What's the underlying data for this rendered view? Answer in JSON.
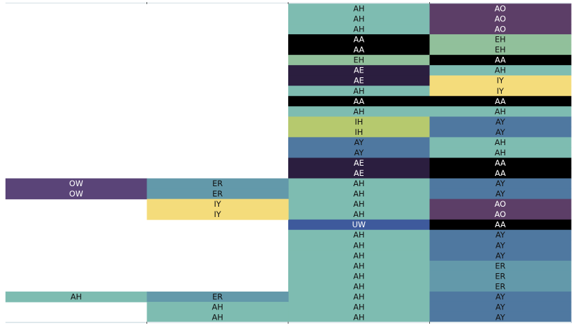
{
  "chart_data": {
    "type": "heatmap",
    "title": "",
    "xlabel": "",
    "ylabel": "",
    "grid": false,
    "legend": "none",
    "columns": 4,
    "rows": 31,
    "colors": {
      "AA": "#000000",
      "AE": "#2b1e3f",
      "AH": "#7ebcb1",
      "AO": "#5c3e67",
      "AY": "#4f78a0",
      "EH": "#91c09b",
      "ER": "#6399aa",
      "IH": "#b6c96e",
      "IY": "#f4dc7b",
      "OW": "#5a4478",
      "UW": "#3e5a9c"
    },
    "text_colors": {
      "AA": "#ffffff",
      "AE": "#ffffff",
      "AO": "#ffffff",
      "OW": "#ffffff",
      "UW": "#ffffff",
      "AH": "#111111",
      "AY": "#111111",
      "EH": "#111111",
      "ER": "#111111",
      "IH": "#111111",
      "IY": "#111111"
    },
    "cells": [
      {
        "col": 2,
        "row": 0,
        "label": "AH"
      },
      {
        "col": 2,
        "row": 1,
        "label": "AH"
      },
      {
        "col": 2,
        "row": 2,
        "label": "AH"
      },
      {
        "col": 2,
        "row": 3,
        "label": "AA"
      },
      {
        "col": 2,
        "row": 4,
        "label": "AA"
      },
      {
        "col": 2,
        "row": 5,
        "label": "EH"
      },
      {
        "col": 2,
        "row": 6,
        "label": "AE"
      },
      {
        "col": 2,
        "row": 7,
        "label": "AE"
      },
      {
        "col": 2,
        "row": 8,
        "label": "AH"
      },
      {
        "col": 2,
        "row": 9,
        "label": "AA"
      },
      {
        "col": 2,
        "row": 10,
        "label": "AH"
      },
      {
        "col": 2,
        "row": 11,
        "label": "IH"
      },
      {
        "col": 2,
        "row": 12,
        "label": "IH"
      },
      {
        "col": 2,
        "row": 13,
        "label": "AY"
      },
      {
        "col": 2,
        "row": 14,
        "label": "AY"
      },
      {
        "col": 2,
        "row": 15,
        "label": "AE"
      },
      {
        "col": 2,
        "row": 16,
        "label": "AE"
      },
      {
        "col": 2,
        "row": 17,
        "label": "AH"
      },
      {
        "col": 2,
        "row": 18,
        "label": "AH"
      },
      {
        "col": 2,
        "row": 19,
        "label": "AH"
      },
      {
        "col": 2,
        "row": 20,
        "label": "AH"
      },
      {
        "col": 2,
        "row": 21,
        "label": "UW"
      },
      {
        "col": 2,
        "row": 22,
        "label": "AH"
      },
      {
        "col": 2,
        "row": 23,
        "label": "AH"
      },
      {
        "col": 2,
        "row": 24,
        "label": "AH"
      },
      {
        "col": 2,
        "row": 25,
        "label": "AH"
      },
      {
        "col": 2,
        "row": 26,
        "label": "AH"
      },
      {
        "col": 2,
        "row": 27,
        "label": "AH"
      },
      {
        "col": 2,
        "row": 28,
        "label": "AH"
      },
      {
        "col": 2,
        "row": 29,
        "label": "AH"
      },
      {
        "col": 2,
        "row": 30,
        "label": "AH"
      },
      {
        "col": 3,
        "row": 0,
        "label": "AO"
      },
      {
        "col": 3,
        "row": 1,
        "label": "AO"
      },
      {
        "col": 3,
        "row": 2,
        "label": "AO"
      },
      {
        "col": 3,
        "row": 3,
        "label": "EH"
      },
      {
        "col": 3,
        "row": 4,
        "label": "EH"
      },
      {
        "col": 3,
        "row": 5,
        "label": "AA"
      },
      {
        "col": 3,
        "row": 6,
        "label": "AH"
      },
      {
        "col": 3,
        "row": 7,
        "label": "IY"
      },
      {
        "col": 3,
        "row": 8,
        "label": "IY"
      },
      {
        "col": 3,
        "row": 9,
        "label": "AA"
      },
      {
        "col": 3,
        "row": 10,
        "label": "AH"
      },
      {
        "col": 3,
        "row": 11,
        "label": "AY"
      },
      {
        "col": 3,
        "row": 12,
        "label": "AY"
      },
      {
        "col": 3,
        "row": 13,
        "label": "AH"
      },
      {
        "col": 3,
        "row": 14,
        "label": "AH"
      },
      {
        "col": 3,
        "row": 15,
        "label": "AA"
      },
      {
        "col": 3,
        "row": 16,
        "label": "AA"
      },
      {
        "col": 3,
        "row": 17,
        "label": "AY"
      },
      {
        "col": 3,
        "row": 18,
        "label": "AY"
      },
      {
        "col": 3,
        "row": 19,
        "label": "AO"
      },
      {
        "col": 3,
        "row": 20,
        "label": "AO"
      },
      {
        "col": 3,
        "row": 21,
        "label": "AA"
      },
      {
        "col": 3,
        "row": 22,
        "label": "AY"
      },
      {
        "col": 3,
        "row": 23,
        "label": "AY"
      },
      {
        "col": 3,
        "row": 24,
        "label": "AY"
      },
      {
        "col": 3,
        "row": 25,
        "label": "ER"
      },
      {
        "col": 3,
        "row": 26,
        "label": "ER"
      },
      {
        "col": 3,
        "row": 27,
        "label": "ER"
      },
      {
        "col": 3,
        "row": 28,
        "label": "AY"
      },
      {
        "col": 3,
        "row": 29,
        "label": "AY"
      },
      {
        "col": 3,
        "row": 30,
        "label": "AY"
      },
      {
        "col": 0,
        "row": 17,
        "label": "OW"
      },
      {
        "col": 0,
        "row": 18,
        "label": "OW"
      },
      {
        "col": 0,
        "row": 28,
        "label": "AH"
      },
      {
        "col": 1,
        "row": 17,
        "label": "ER"
      },
      {
        "col": 1,
        "row": 18,
        "label": "ER"
      },
      {
        "col": 1,
        "row": 19,
        "label": "IY"
      },
      {
        "col": 1,
        "row": 20,
        "label": "IY"
      },
      {
        "col": 1,
        "row": 28,
        "label": "ER"
      },
      {
        "col": 1,
        "row": 29,
        "label": "AH"
      },
      {
        "col": 1,
        "row": 30,
        "label": "AH"
      }
    ]
  }
}
